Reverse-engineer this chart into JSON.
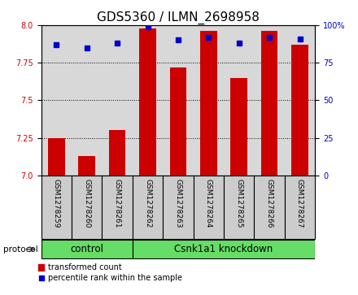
{
  "title": "GDS5360 / ILMN_2698958",
  "samples": [
    "GSM1278259",
    "GSM1278260",
    "GSM1278261",
    "GSM1278262",
    "GSM1278263",
    "GSM1278264",
    "GSM1278265",
    "GSM1278266",
    "GSM1278267"
  ],
  "bar_values": [
    7.25,
    7.13,
    7.3,
    7.98,
    7.72,
    7.96,
    7.65,
    7.96,
    7.87
  ],
  "dot_values": [
    87,
    85,
    88,
    99,
    90,
    92,
    88,
    92,
    91
  ],
  "bar_color": "#cc0000",
  "dot_color": "#0000cc",
  "ylim_left": [
    7.0,
    8.0
  ],
  "ylim_right": [
    0,
    100
  ],
  "yticks_left": [
    7.0,
    7.25,
    7.5,
    7.75,
    8.0
  ],
  "yticks_right": [
    0,
    25,
    50,
    75,
    100
  ],
  "bar_width": 0.55,
  "n_control": 3,
  "n_knockdown": 6,
  "control_label": "control",
  "knockdown_label": "Csnk1a1 knockdown",
  "protocol_label": "protocol",
  "legend_bar": "transformed count",
  "legend_dot": "percentile rank within the sample",
  "group_color": "#66DD66",
  "xtick_bg_color": "#cccccc",
  "title_fontsize": 11,
  "tick_fontsize": 7,
  "sample_fontsize": 6.5,
  "label_fontsize": 8
}
